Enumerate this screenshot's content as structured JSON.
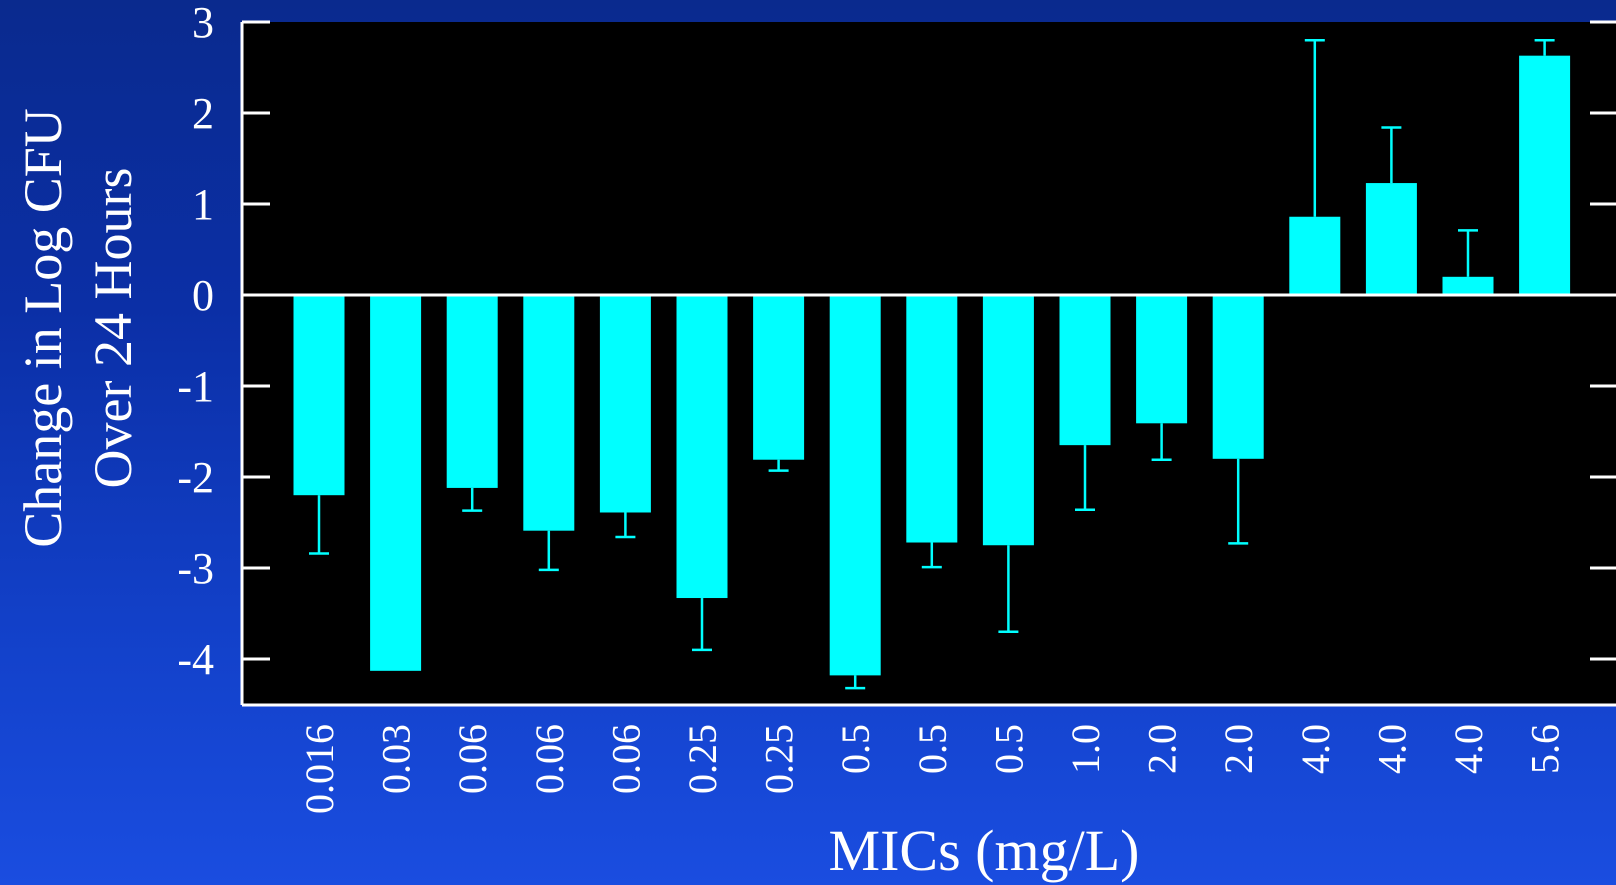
{
  "chart_data": {
    "type": "bar",
    "xlabel": "MICs (mg/L)",
    "ylabel_line1": "Change in Log CFU",
    "ylabel_line2": "Over 24 Hours",
    "ylim": [
      -4.5,
      3
    ],
    "yticks": [
      3,
      2,
      1,
      0,
      -1,
      -2,
      -3,
      -4
    ],
    "grid": false,
    "legend": "none",
    "categories": [
      "0.016",
      "0.03",
      "0.06",
      "0.06",
      "0.06",
      "0.25",
      "0.25",
      "0.5",
      "0.5",
      "0.5",
      "1.0",
      "2.0",
      "2.0",
      "4.0",
      "4.0",
      "4.0",
      "5.6"
    ],
    "values": [
      -2.2,
      -4.13,
      -2.12,
      -2.59,
      -2.39,
      -3.33,
      -1.81,
      -4.18,
      -2.72,
      -2.75,
      -1.65,
      -1.41,
      -1.8,
      0.86,
      1.23,
      0.2,
      2.63
    ],
    "error": [
      0.64,
      0,
      0.25,
      0.43,
      0.27,
      0.57,
      0.12,
      0.14,
      0.27,
      0.95,
      0.71,
      0.4,
      0.93,
      1.94,
      0.61,
      0.51,
      0.17
    ],
    "colors": {
      "bar": "#00ffff",
      "plot_background": "#000000",
      "axis": "#ffffff",
      "text": "#ffffff"
    }
  }
}
